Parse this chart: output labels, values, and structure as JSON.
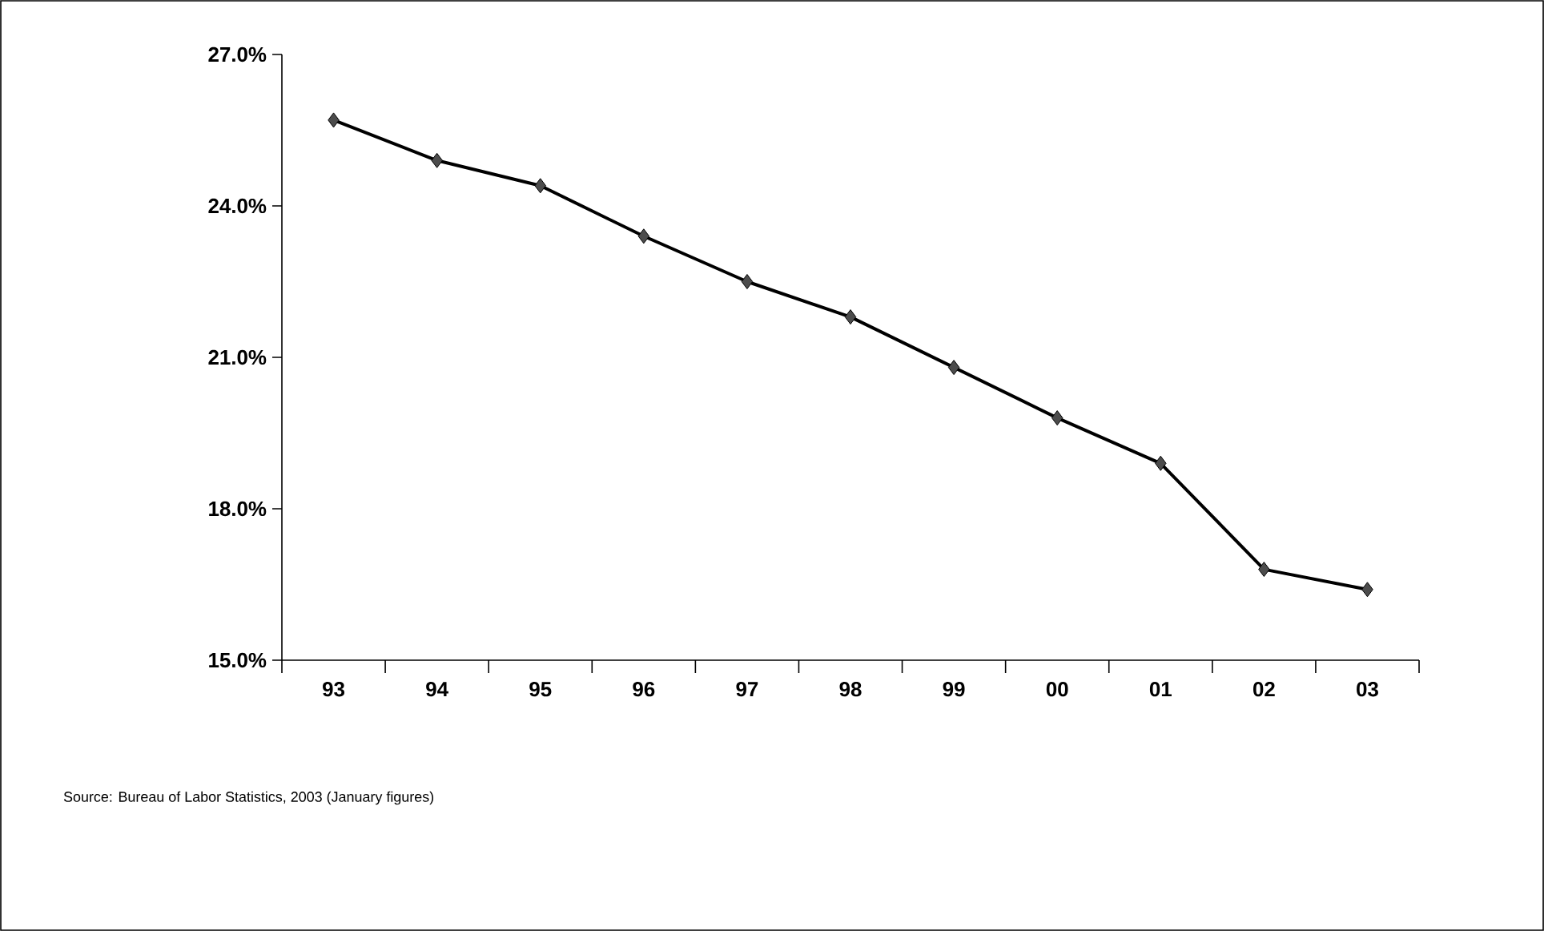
{
  "chart_data": {
    "type": "line",
    "categories": [
      "93",
      "94",
      "95",
      "96",
      "97",
      "98",
      "99",
      "00",
      "01",
      "02",
      "03"
    ],
    "series": [
      {
        "color": "#000000",
        "values": [
          25.7,
          24.9,
          24.4,
          23.4,
          22.5,
          21.8,
          20.8,
          19.8,
          18.9,
          16.8,
          16.4
        ]
      }
    ],
    "ylim": [
      15,
      27
    ],
    "yticks": [
      {
        "value": 15,
        "label": "15.0%"
      },
      {
        "value": 18,
        "label": "18.0%"
      },
      {
        "value": 21,
        "label": "21.0%"
      },
      {
        "value": 24,
        "label": "24.0%"
      },
      {
        "value": 27,
        "label": "27.0%"
      }
    ],
    "marker": "diamond",
    "line_style": "solid",
    "grid": false,
    "legend": false,
    "annotations": [
      "Source:  Bureau of Labor Statistics, 2003 (January figures)"
    ]
  }
}
